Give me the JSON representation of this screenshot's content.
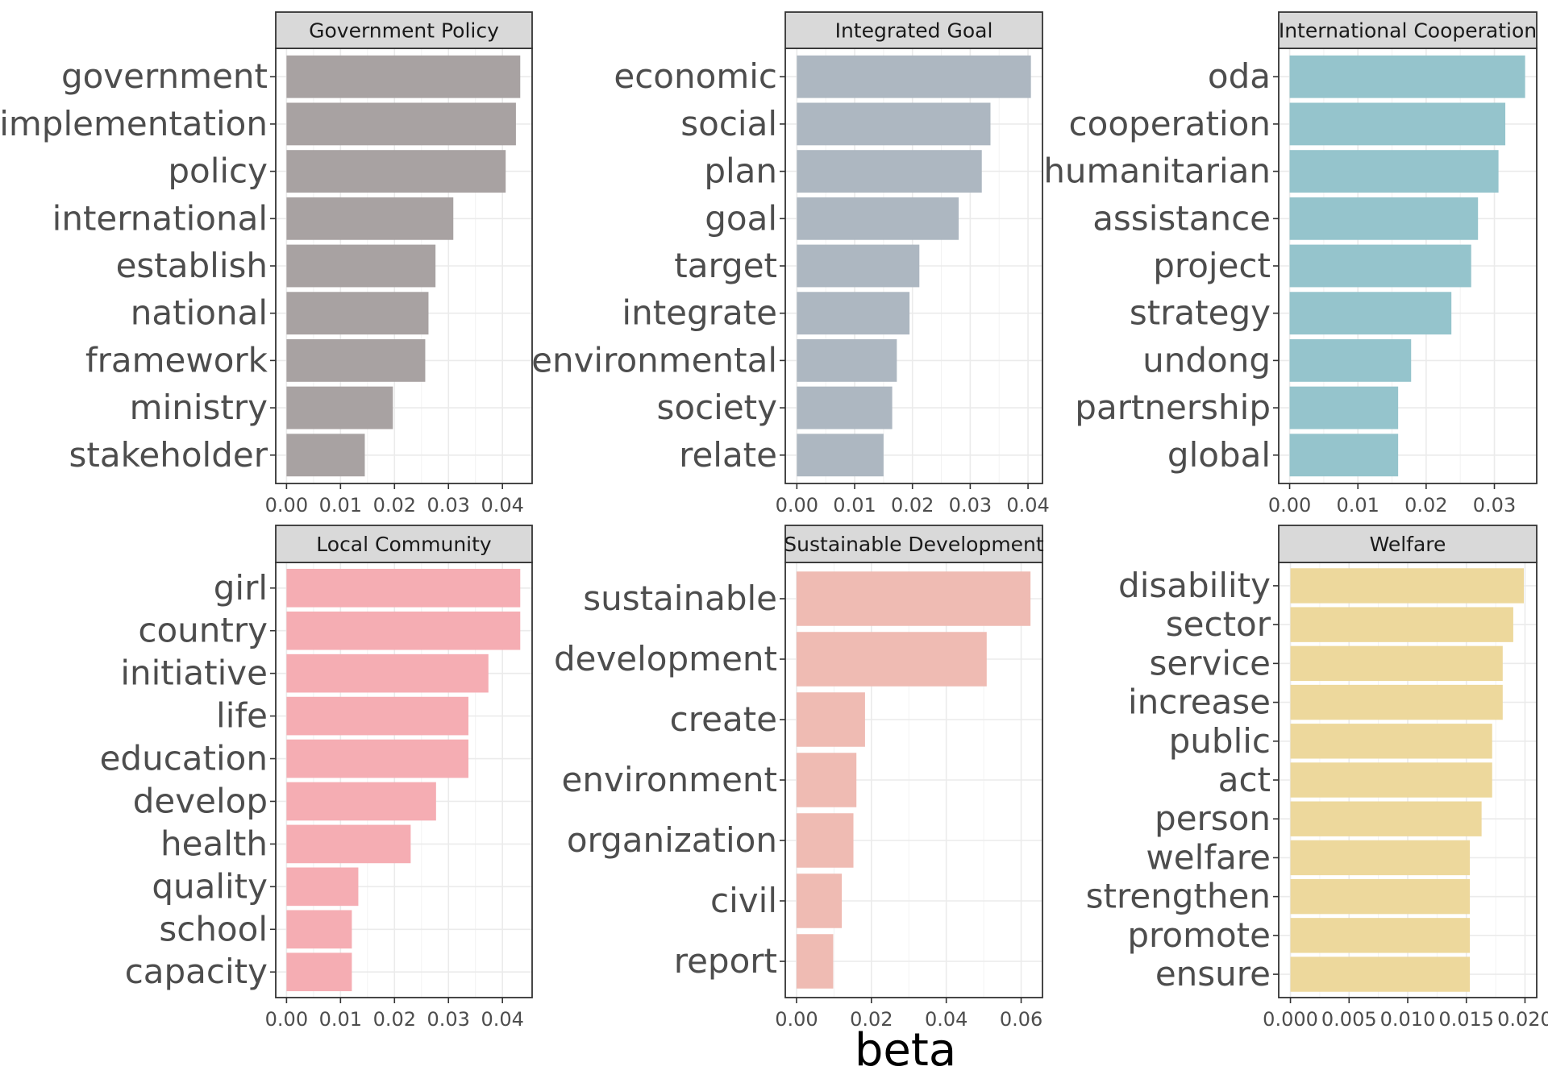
{
  "chart_data": {
    "type": "bar",
    "orientation": "horizontal",
    "xlabel": "beta",
    "ylabel": "",
    "grid": true,
    "facets": [
      {
        "title": "Government Policy",
        "color": "#a8a2a2",
        "categories": [
          "government",
          "implementation",
          "policy",
          "international",
          "establish",
          "national",
          "framework",
          "ministry",
          "stakeholder"
        ],
        "values": [
          0.0433,
          0.0425,
          0.0406,
          0.0309,
          0.0276,
          0.0263,
          0.0257,
          0.0197,
          0.0145
        ],
        "xlim": [
          -0.002,
          0.0455
        ],
        "ticks": [
          0.0,
          0.01,
          0.02,
          0.03,
          0.04
        ],
        "tick_labels": [
          "0.00",
          "0.01",
          "0.02",
          "0.03",
          "0.04"
        ]
      },
      {
        "title": "Integrated Goal",
        "color": "#adb7c1",
        "categories": [
          "economic",
          "social",
          "plan",
          "goal",
          "target",
          "integrate",
          "environmental",
          "society",
          "relate"
        ],
        "values": [
          0.0405,
          0.0335,
          0.032,
          0.028,
          0.0212,
          0.0195,
          0.0173,
          0.0165,
          0.015
        ],
        "xlim": [
          -0.002,
          0.0425
        ],
        "ticks": [
          0.0,
          0.01,
          0.02,
          0.03,
          0.04
        ],
        "tick_labels": [
          "0.00",
          "0.01",
          "0.02",
          "0.03",
          "0.04"
        ]
      },
      {
        "title": "International Cooperation",
        "color": "#95c4cc",
        "categories": [
          "oda",
          "cooperation",
          "humanitarian",
          "assistance",
          "project",
          "strategy",
          "undong",
          "partnership",
          "global"
        ],
        "values": [
          0.0345,
          0.0316,
          0.0306,
          0.0276,
          0.0266,
          0.0237,
          0.0178,
          0.0159,
          0.0159
        ],
        "xlim": [
          -0.0016,
          0.0362
        ],
        "ticks": [
          0.0,
          0.01,
          0.02,
          0.03
        ],
        "tick_labels": [
          "0.00",
          "0.01",
          "0.02",
          "0.03"
        ]
      },
      {
        "title": "Local Community",
        "color": "#f5adb3",
        "categories": [
          "girl",
          "country",
          "initiative",
          "life",
          "education",
          "develop",
          "health",
          "quality",
          "school",
          "capacity"
        ],
        "values": [
          0.0433,
          0.0433,
          0.0374,
          0.0337,
          0.0337,
          0.0277,
          0.023,
          0.0133,
          0.0121,
          0.0121
        ],
        "xlim": [
          -0.002,
          0.0455
        ],
        "ticks": [
          0.0,
          0.01,
          0.02,
          0.03,
          0.04
        ],
        "tick_labels": [
          "0.00",
          "0.01",
          "0.02",
          "0.03",
          "0.04"
        ]
      },
      {
        "title": "Sustainable Development",
        "color": "#efbbb3",
        "categories": [
          "sustainable",
          "development",
          "create",
          "environment",
          "organization",
          "civil",
          "report"
        ],
        "values": [
          0.0625,
          0.0508,
          0.0183,
          0.016,
          0.0152,
          0.0121,
          0.0098
        ],
        "xlim": [
          -0.003,
          0.0657
        ],
        "ticks": [
          0.0,
          0.02,
          0.04,
          0.06
        ],
        "tick_labels": [
          "0.00",
          "0.02",
          "0.04",
          "0.06"
        ]
      },
      {
        "title": "Welfare",
        "color": "#edd89c",
        "categories": [
          "disability",
          "sector",
          "service",
          "increase",
          "public",
          "act",
          "person",
          "welfare",
          "strengthen",
          "promote",
          "ensure"
        ],
        "values": [
          0.0199,
          0.019,
          0.0181,
          0.0181,
          0.0172,
          0.0172,
          0.0163,
          0.0153,
          0.0153,
          0.0153,
          0.0153
        ],
        "xlim": [
          -0.001,
          0.021
        ],
        "ticks": [
          0.0,
          0.005,
          0.01,
          0.015,
          0.02
        ],
        "tick_labels": [
          "0.000",
          "0.005",
          "0.010",
          "0.015",
          "0.020"
        ]
      }
    ]
  }
}
